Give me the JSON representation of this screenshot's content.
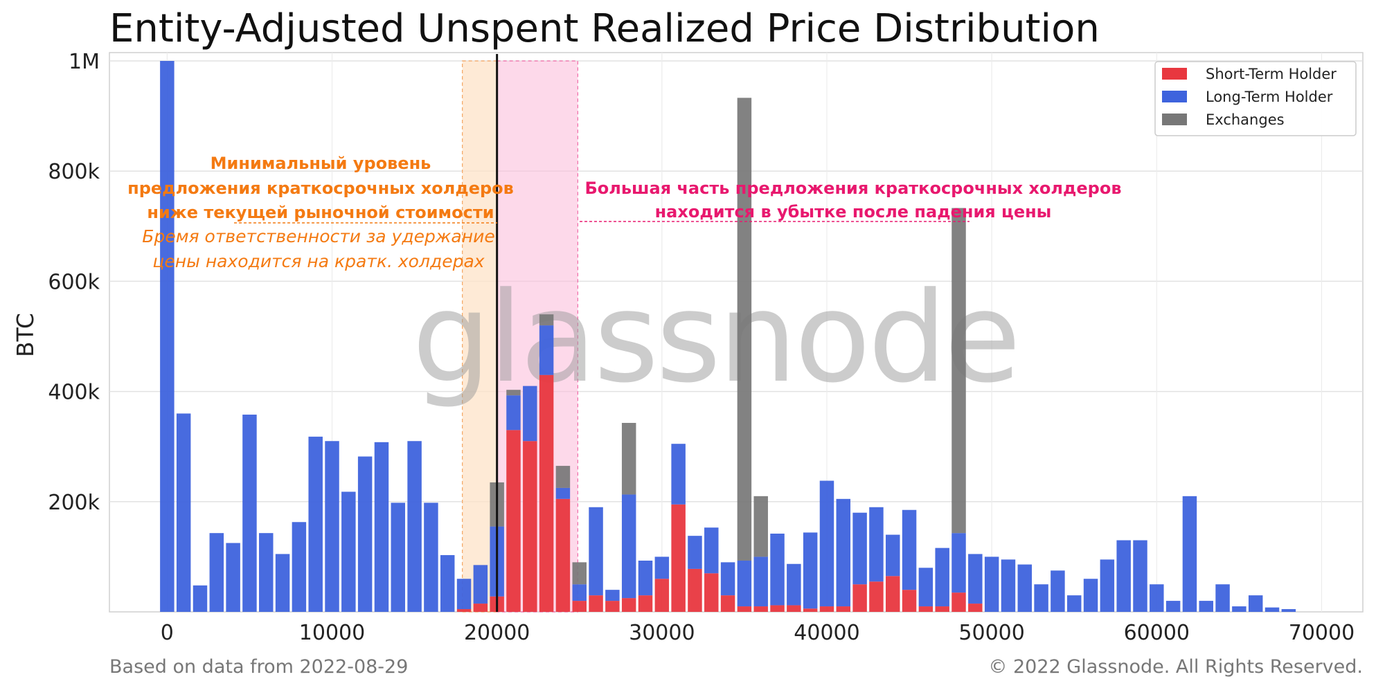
{
  "chart_data": {
    "type": "bar",
    "title": "Entity-Adjusted Unspent Realized Price Distribution",
    "ylabel": "BTC",
    "xlabel": "",
    "xlim": [
      -3500,
      72500
    ],
    "ylim": [
      0,
      1000000
    ],
    "bin_width": 1000,
    "x_ticks": [
      0,
      10000,
      20000,
      30000,
      40000,
      50000,
      60000,
      70000
    ],
    "x_tick_labels": [
      "0",
      "10000",
      "20000",
      "30000",
      "40000",
      "50000",
      "60000",
      "70000"
    ],
    "y_ticks": [
      200000,
      400000,
      600000,
      800000,
      1000000
    ],
    "y_tick_labels": [
      "200k",
      "400k",
      "600k",
      "800k",
      "1M"
    ],
    "grid": true,
    "legend_position": "top-right",
    "stacked": true,
    "x": [
      0,
      1000,
      2000,
      3000,
      4000,
      5000,
      6000,
      7000,
      8000,
      9000,
      10000,
      11000,
      12000,
      13000,
      14000,
      15000,
      16000,
      17000,
      18000,
      19000,
      20000,
      21000,
      22000,
      23000,
      24000,
      25000,
      26000,
      27000,
      28000,
      29000,
      30000,
      31000,
      32000,
      33000,
      34000,
      35000,
      36000,
      37000,
      38000,
      39000,
      40000,
      41000,
      42000,
      43000,
      44000,
      45000,
      46000,
      47000,
      48000,
      49000,
      50000,
      51000,
      52000,
      53000,
      54000,
      55000,
      56000,
      57000,
      58000,
      59000,
      60000,
      61000,
      62000,
      63000,
      64000,
      65000,
      66000,
      67000,
      68000
    ],
    "series": [
      {
        "name": "Short-Term Holder",
        "color": "#e8373f",
        "values": [
          0,
          0,
          0,
          0,
          0,
          0,
          0,
          0,
          0,
          0,
          0,
          0,
          0,
          0,
          0,
          0,
          0,
          0,
          5000,
          15000,
          28000,
          330000,
          310000,
          430000,
          205000,
          20000,
          30000,
          20000,
          25000,
          30000,
          60000,
          195000,
          78000,
          70000,
          30000,
          10000,
          10000,
          12000,
          12000,
          6000,
          10000,
          10000,
          50000,
          55000,
          65000,
          40000,
          10000,
          10000,
          35000,
          15000,
          0,
          0,
          0,
          0,
          0,
          0,
          0,
          0,
          0,
          0,
          0,
          0,
          0,
          0,
          0,
          0,
          0,
          0,
          0
        ]
      },
      {
        "name": "Long-Term Holder",
        "color": "#3e63dd",
        "values": [
          1000000,
          360000,
          48000,
          143000,
          125000,
          358000,
          143000,
          105000,
          163000,
          318000,
          310000,
          218000,
          282000,
          308000,
          198000,
          310000,
          198000,
          103000,
          55000,
          70000,
          127000,
          63000,
          100000,
          90000,
          20000,
          30000,
          160000,
          20000,
          188000,
          63000,
          40000,
          110000,
          60000,
          83000,
          60000,
          83000,
          90000,
          130000,
          75000,
          138000,
          228000,
          195000,
          130000,
          135000,
          75000,
          145000,
          70000,
          106000,
          108000,
          90000,
          100000,
          95000,
          86000,
          50000,
          75000,
          30000,
          60000,
          95000,
          130000,
          130000,
          50000,
          20000,
          210000,
          20000,
          50000,
          10000,
          30000,
          8000,
          5000
        ]
      },
      {
        "name": "Exchanges",
        "color": "#777777",
        "values": [
          0,
          0,
          0,
          0,
          0,
          0,
          0,
          0,
          0,
          0,
          0,
          0,
          0,
          0,
          0,
          0,
          0,
          0,
          0,
          0,
          80000,
          10000,
          0,
          20000,
          40000,
          40000,
          0,
          0,
          130000,
          0,
          0,
          0,
          0,
          0,
          0,
          840000,
          110000,
          0,
          0,
          0,
          0,
          0,
          0,
          0,
          0,
          0,
          0,
          0,
          590000,
          0,
          0,
          0,
          0,
          0,
          0,
          0,
          0,
          0,
          0,
          0,
          0,
          0,
          0,
          0,
          0,
          0,
          0,
          0,
          0
        ]
      }
    ],
    "annotations": {
      "orange_box_x": [
        17900,
        20000
      ],
      "pink_box_x": [
        20000,
        24900
      ],
      "current_price_line_x": 20000,
      "orange_text": [
        "Минимальный уровень",
        "предложения краткосрочных холдеров",
        "ниже текущей рыночной стоимости"
      ],
      "orange_italic": [
        "Бремя ответственности за удержание",
        "цены находится на кратк. холдерах"
      ],
      "pink_text": [
        "Большая часть предложения краткосрочных холдеров",
        "находится в убытке после падения цены"
      ]
    }
  },
  "watermark": "glassnode",
  "footer": {
    "left": "Based on data from 2022-08-29",
    "right": "© 2022 Glassnode. All Rights Reserved."
  }
}
